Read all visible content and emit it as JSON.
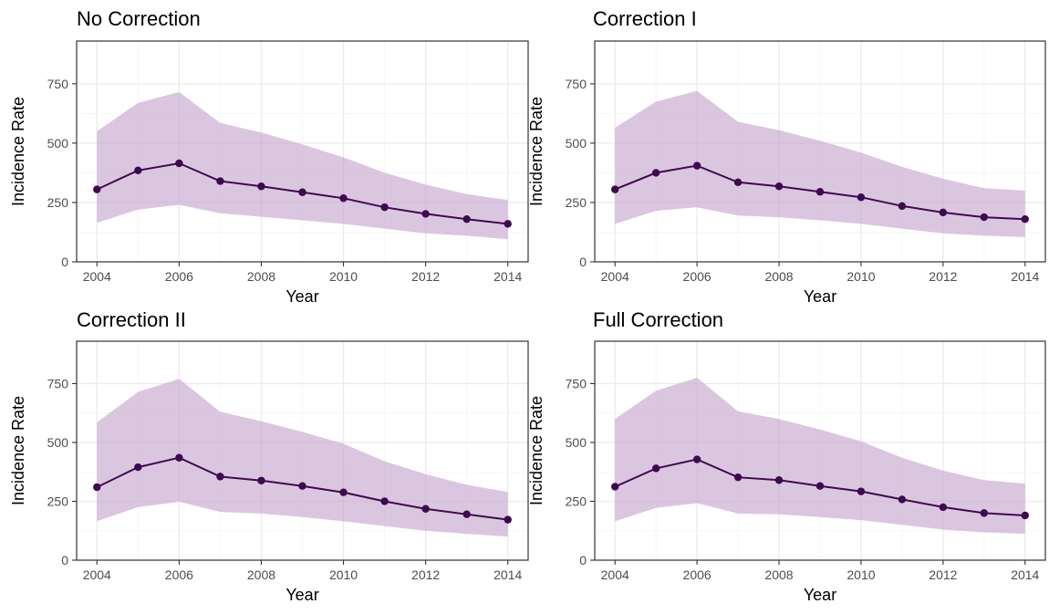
{
  "chart_data": [
    {
      "type": "line",
      "title": "No Correction",
      "xlabel": "Year",
      "ylabel": "Incidence Rate",
      "xlim": [
        2004,
        2014
      ],
      "ylim": [
        0,
        930
      ],
      "xticks": [
        2004,
        2006,
        2008,
        2010,
        2012,
        2014
      ],
      "yticks": [
        0,
        250,
        500,
        750
      ],
      "grid": true,
      "x": [
        2004,
        2005,
        2006,
        2007,
        2008,
        2009,
        2010,
        2011,
        2012,
        2013,
        2014
      ],
      "series": [
        {
          "values": [
            305,
            385,
            415,
            340,
            318,
            293,
            268,
            230,
            202,
            180,
            160
          ],
          "lower": [
            165,
            220,
            240,
            205,
            190,
            175,
            160,
            140,
            120,
            110,
            95
          ],
          "upper": [
            550,
            670,
            715,
            585,
            545,
            495,
            440,
            375,
            325,
            285,
            260
          ]
        }
      ]
    },
    {
      "type": "line",
      "title": "Correction I",
      "xlabel": "Year",
      "ylabel": "Incidence Rate",
      "xlim": [
        2004,
        2014
      ],
      "ylim": [
        0,
        930
      ],
      "xticks": [
        2004,
        2006,
        2008,
        2010,
        2012,
        2014
      ],
      "yticks": [
        0,
        250,
        500,
        750
      ],
      "grid": true,
      "x": [
        2004,
        2005,
        2006,
        2007,
        2008,
        2009,
        2010,
        2011,
        2012,
        2013,
        2014
      ],
      "series": [
        {
          "values": [
            305,
            375,
            405,
            335,
            318,
            295,
            272,
            235,
            208,
            188,
            180
          ],
          "lower": [
            160,
            215,
            230,
            195,
            188,
            175,
            160,
            140,
            120,
            110,
            105
          ],
          "upper": [
            565,
            675,
            720,
            590,
            555,
            510,
            460,
            400,
            350,
            310,
            300
          ]
        }
      ]
    },
    {
      "type": "line",
      "title": "Correction II",
      "xlabel": "Year",
      "ylabel": "Incidence Rate",
      "xlim": [
        2004,
        2014
      ],
      "ylim": [
        0,
        930
      ],
      "xticks": [
        2004,
        2006,
        2008,
        2010,
        2012,
        2014
      ],
      "yticks": [
        0,
        250,
        500,
        750
      ],
      "grid": true,
      "x": [
        2004,
        2005,
        2006,
        2007,
        2008,
        2009,
        2010,
        2011,
        2012,
        2013,
        2014
      ],
      "series": [
        {
          "values": [
            310,
            395,
            435,
            355,
            338,
            315,
            288,
            250,
            218,
            195,
            172
          ],
          "lower": [
            165,
            225,
            248,
            205,
            198,
            183,
            165,
            145,
            125,
            112,
            100
          ],
          "upper": [
            585,
            715,
            770,
            630,
            590,
            545,
            495,
            420,
            365,
            320,
            290
          ]
        }
      ]
    },
    {
      "type": "line",
      "title": "Full Correction",
      "xlabel": "Year",
      "ylabel": "Incidence Rate",
      "xlim": [
        2004,
        2014
      ],
      "ylim": [
        0,
        930
      ],
      "xticks": [
        2004,
        2006,
        2008,
        2010,
        2012,
        2014
      ],
      "yticks": [
        0,
        250,
        500,
        750
      ],
      "grid": true,
      "x": [
        2004,
        2005,
        2006,
        2007,
        2008,
        2009,
        2010,
        2011,
        2012,
        2013,
        2014
      ],
      "series": [
        {
          "values": [
            312,
            390,
            428,
            352,
            340,
            315,
            292,
            258,
            225,
            200,
            190
          ],
          "lower": [
            165,
            222,
            242,
            198,
            195,
            183,
            170,
            150,
            130,
            118,
            112
          ],
          "upper": [
            600,
            720,
            775,
            632,
            600,
            555,
            505,
            435,
            380,
            340,
            325
          ]
        }
      ]
    }
  ],
  "colors": {
    "line": "#3d0a4f",
    "band": "#c7a8cf",
    "grid_major": "#ebebeb",
    "grid_minor": "#f4f4f4",
    "panel_border": "#333333",
    "tick_text": "#4d4d4d"
  }
}
